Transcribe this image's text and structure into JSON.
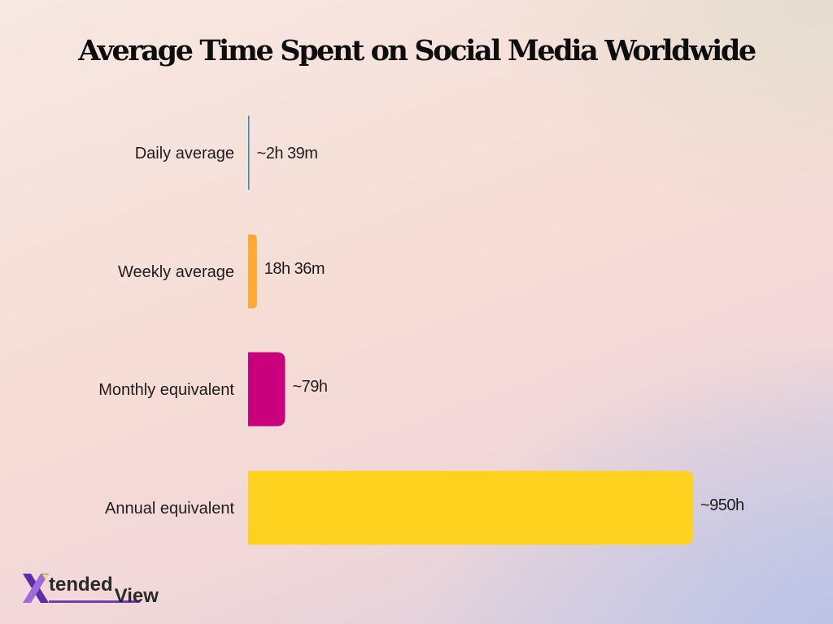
{
  "title": "Average Time Spent on Social Media Worldwide",
  "chart_data": {
    "type": "bar",
    "orientation": "horizontal",
    "title": "Average Time Spent on Social Media Worldwide",
    "unit": "hours",
    "categories": [
      "Daily average",
      "Weekly average",
      "Monthly equivalent",
      "Annual equivalent"
    ],
    "values": [
      2.65,
      18.6,
      79,
      950
    ],
    "value_labels": [
      "~2h 39m",
      "18h 36m",
      "~79h",
      "~950h"
    ],
    "colors": [
      "#2b8bbf",
      "#ffa930",
      "#c8007b",
      "#ffd21f"
    ],
    "xlim": [
      0,
      950
    ],
    "grid": false,
    "legend": "none"
  },
  "logo": {
    "mark": "X",
    "text_upper": "tended",
    "text_lower": "View",
    "mark_colors": [
      "#5a2ea6",
      "#a26ad9",
      "#c7ff3a"
    ]
  }
}
